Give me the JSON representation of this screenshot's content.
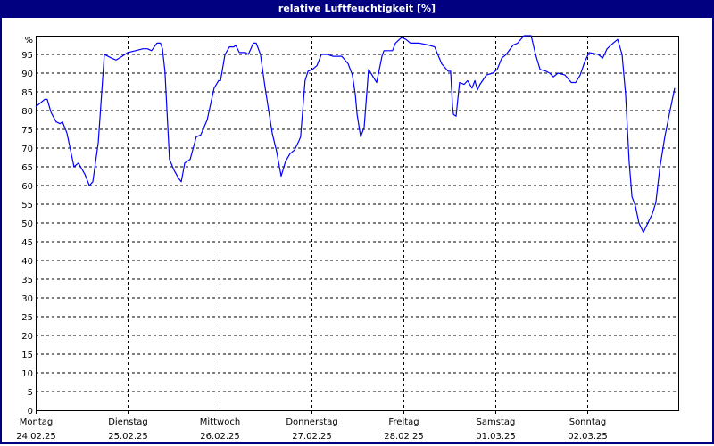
{
  "window": {
    "title": "relative Luftfeuchtigkeit [%]"
  },
  "chart_data": {
    "type": "line",
    "title": "relative Luftfeuchtigkeit [%]",
    "ylabel": "%",
    "ylim": [
      0,
      100
    ],
    "yticks": [
      0,
      5,
      10,
      15,
      20,
      25,
      30,
      35,
      40,
      45,
      50,
      55,
      60,
      65,
      70,
      75,
      80,
      85,
      90,
      95
    ],
    "grid": true,
    "x_days": [
      {
        "day": "Montag",
        "date": "24.02.25"
      },
      {
        "day": "Dienstag",
        "date": "25.02.25"
      },
      {
        "day": "Mittwoch",
        "date": "26.02.25"
      },
      {
        "day": "Donnerstag",
        "date": "27.02.25"
      },
      {
        "day": "Freitag",
        "date": "28.02.25"
      },
      {
        "day": "Samstag",
        "date": "01.03.25"
      },
      {
        "day": "Sonntag",
        "date": "02.03.25"
      }
    ],
    "xlim": [
      "24.02.25 00:00",
      "03.03.25 00:00"
    ],
    "colors": {
      "line": "#0000ff",
      "frame": "#000080",
      "grid": "#000000"
    },
    "series": [
      {
        "points": [
          [
            "24.02.25 00:00",
            81
          ],
          [
            "24.02.25 02:20",
            83
          ],
          [
            "24.02.25 03:00",
            83
          ],
          [
            "24.02.25 04:00",
            79.5
          ],
          [
            "24.02.25 05:20",
            77
          ],
          [
            "24.02.25 06:20",
            76.5
          ],
          [
            "24.02.25 07:00",
            77
          ],
          [
            "24.02.25 08:10",
            74
          ],
          [
            "24.02.25 10:00",
            65
          ],
          [
            "24.02.25 11:10",
            66
          ],
          [
            "24.02.25 12:50",
            63
          ],
          [
            "24.02.25 14:00",
            60
          ],
          [
            "24.02.25 14:55",
            61
          ],
          [
            "24.02.25 16:20",
            71.5
          ],
          [
            "24.02.25 17:55",
            95
          ],
          [
            "24.02.25 19:50",
            94
          ],
          [
            "24.02.25 21:00",
            93.5
          ],
          [
            "24.02.25 22:35",
            94.5
          ],
          [
            "25.02.25 00:00",
            95.5
          ],
          [
            "25.02.25 02:05",
            96
          ],
          [
            "25.02.25 04:00",
            96.5
          ],
          [
            "25.02.25 05:10",
            96.5
          ],
          [
            "25.02.25 06:15",
            96
          ],
          [
            "25.02.25 07:40",
            98
          ],
          [
            "25.02.25 08:35",
            98
          ],
          [
            "25.02.25 09:05",
            96.5
          ],
          [
            "25.02.25 09:45",
            90.5
          ],
          [
            "25.02.25 10:55",
            67
          ],
          [
            "25.02.25 12:10",
            64
          ],
          [
            "25.02.25 13:15",
            62
          ],
          [
            "25.02.25 14:00",
            61
          ],
          [
            "25.02.25 14:55",
            66
          ],
          [
            "25.02.25 16:20",
            67
          ],
          [
            "25.02.25 17:55",
            73
          ],
          [
            "25.02.25 19:05",
            73.5
          ],
          [
            "25.02.25 20:45",
            77.5
          ],
          [
            "25.02.25 22:35",
            86
          ],
          [
            "25.02.25 23:45",
            88
          ],
          [
            "26.02.25 00:15",
            88
          ],
          [
            "26.02.25 01:25",
            95
          ],
          [
            "26.02.25 02:35",
            97
          ],
          [
            "26.02.25 03:45",
            97
          ],
          [
            "26.02.25 04:10",
            97.5
          ],
          [
            "26.02.25 05:10",
            95.5
          ],
          [
            "26.02.25 06:45",
            95.5
          ],
          [
            "26.02.25 07:30",
            95
          ],
          [
            "26.02.25 08:50",
            98
          ],
          [
            "26.02.25 09:35",
            98
          ],
          [
            "26.02.25 10:40",
            95
          ],
          [
            "26.02.25 11:55",
            86
          ],
          [
            "26.02.25 13:45",
            74
          ],
          [
            "26.02.25 14:55",
            69
          ],
          [
            "26.02.25 16:05",
            62.5
          ],
          [
            "26.02.25 17:15",
            66.5
          ],
          [
            "26.02.25 18:25",
            68.5
          ],
          [
            "26.02.25 19:35",
            69.5
          ],
          [
            "26.02.25 20:45",
            72
          ],
          [
            "26.02.25 21:10",
            73
          ],
          [
            "26.02.25 22:20",
            88
          ],
          [
            "26.02.25 23:05",
            90.5
          ],
          [
            "27.02.25 00:15",
            91
          ],
          [
            "27.02.25 01:25",
            92
          ],
          [
            "27.02.25 02:35",
            95
          ],
          [
            "27.02.25 04:10",
            95
          ],
          [
            "27.02.25 05:35",
            94.5
          ],
          [
            "27.02.25 07:55",
            94.5
          ],
          [
            "27.02.25 09:35",
            92.5
          ],
          [
            "27.02.25 10:40",
            89.5
          ],
          [
            "27.02.25 11:25",
            84.5
          ],
          [
            "27.02.25 11:55",
            79
          ],
          [
            "27.02.25 12:50",
            73
          ],
          [
            "27.02.25 13:45",
            75.5
          ],
          [
            "27.02.25 14:55",
            91
          ],
          [
            "27.02.25 17:00",
            87.5
          ],
          [
            "27.02.25 18:25",
            94.5
          ],
          [
            "27.02.25 18:55",
            96
          ],
          [
            "27.02.25 21:10",
            96
          ],
          [
            "27.02.25 21:55",
            98
          ],
          [
            "27.02.25 23:30",
            99.5
          ],
          [
            "28.02.25 00:40",
            99
          ],
          [
            "28.02.25 01:50",
            98
          ],
          [
            "28.02.25 04:10",
            98
          ],
          [
            "28.02.25 06:30",
            97.5
          ],
          [
            "28.02.25 08:10",
            97
          ],
          [
            "28.02.25 10:00",
            92.5
          ],
          [
            "28.02.25 11:40",
            90.5
          ],
          [
            "28.02.25 12:20",
            90.5
          ],
          [
            "28.02.25 12:50",
            81
          ],
          [
            "28.02.25 13:05",
            79
          ],
          [
            "28.02.25 13:45",
            78.5
          ],
          [
            "28.02.25 14:40",
            87.5
          ],
          [
            "28.02.25 15:50",
            87
          ],
          [
            "28.02.25 16:45",
            88
          ],
          [
            "28.02.25 17:55",
            86
          ],
          [
            "28.02.25 18:40",
            88
          ],
          [
            "28.02.25 19:20",
            85.5
          ],
          [
            "28.02.25 20:00",
            87
          ],
          [
            "28.02.25 21:40",
            89.5
          ],
          [
            "28.02.25 23:20",
            90
          ],
          [
            "01.03.25 00:30",
            91
          ],
          [
            "01.03.25 01:40",
            94
          ],
          [
            "01.03.25 02:50",
            95
          ],
          [
            "01.03.25 04:40",
            97.5
          ],
          [
            "01.03.25 05:50",
            98
          ],
          [
            "01.03.25 07:30",
            100
          ],
          [
            "01.03.25 09:20",
            100
          ],
          [
            "01.03.25 10:30",
            95
          ],
          [
            "01.03.25 11:40",
            91
          ],
          [
            "01.03.25 13:15",
            90.5
          ],
          [
            "01.03.25 14:10",
            90
          ],
          [
            "01.03.25 15:10",
            89
          ],
          [
            "01.03.25 16:20",
            90
          ],
          [
            "01.03.25 18:10",
            89.5
          ],
          [
            "01.03.25 19:50",
            87.5
          ],
          [
            "01.03.25 21:00",
            87.5
          ],
          [
            "01.03.25 22:10",
            89.5
          ],
          [
            "01.03.25 23:20",
            93
          ],
          [
            "02.03.25 00:30",
            95.5
          ],
          [
            "02.03.25 02:50",
            95
          ],
          [
            "02.03.25 04:00",
            94
          ],
          [
            "02.03.25 05:10",
            96.5
          ],
          [
            "02.03.25 06:45",
            98
          ],
          [
            "02.03.25 07:55",
            99
          ],
          [
            "02.03.25 09:05",
            95
          ],
          [
            "02.03.25 10:00",
            84.5
          ],
          [
            "02.03.25 10:55",
            66.5
          ],
          [
            "02.03.25 11:40",
            57
          ],
          [
            "02.03.25 12:35",
            54.5
          ],
          [
            "02.03.25 13:30",
            50
          ],
          [
            "02.03.25 14:40",
            47.5
          ],
          [
            "02.03.25 17:00",
            52.5
          ],
          [
            "02.03.25 17:55",
            55.5
          ],
          [
            "02.03.25 18:55",
            64.5
          ],
          [
            "02.03.25 20:15",
            73
          ],
          [
            "02.03.25 21:25",
            79
          ],
          [
            "02.03.25 22:50",
            86
          ]
        ]
      }
    ]
  }
}
